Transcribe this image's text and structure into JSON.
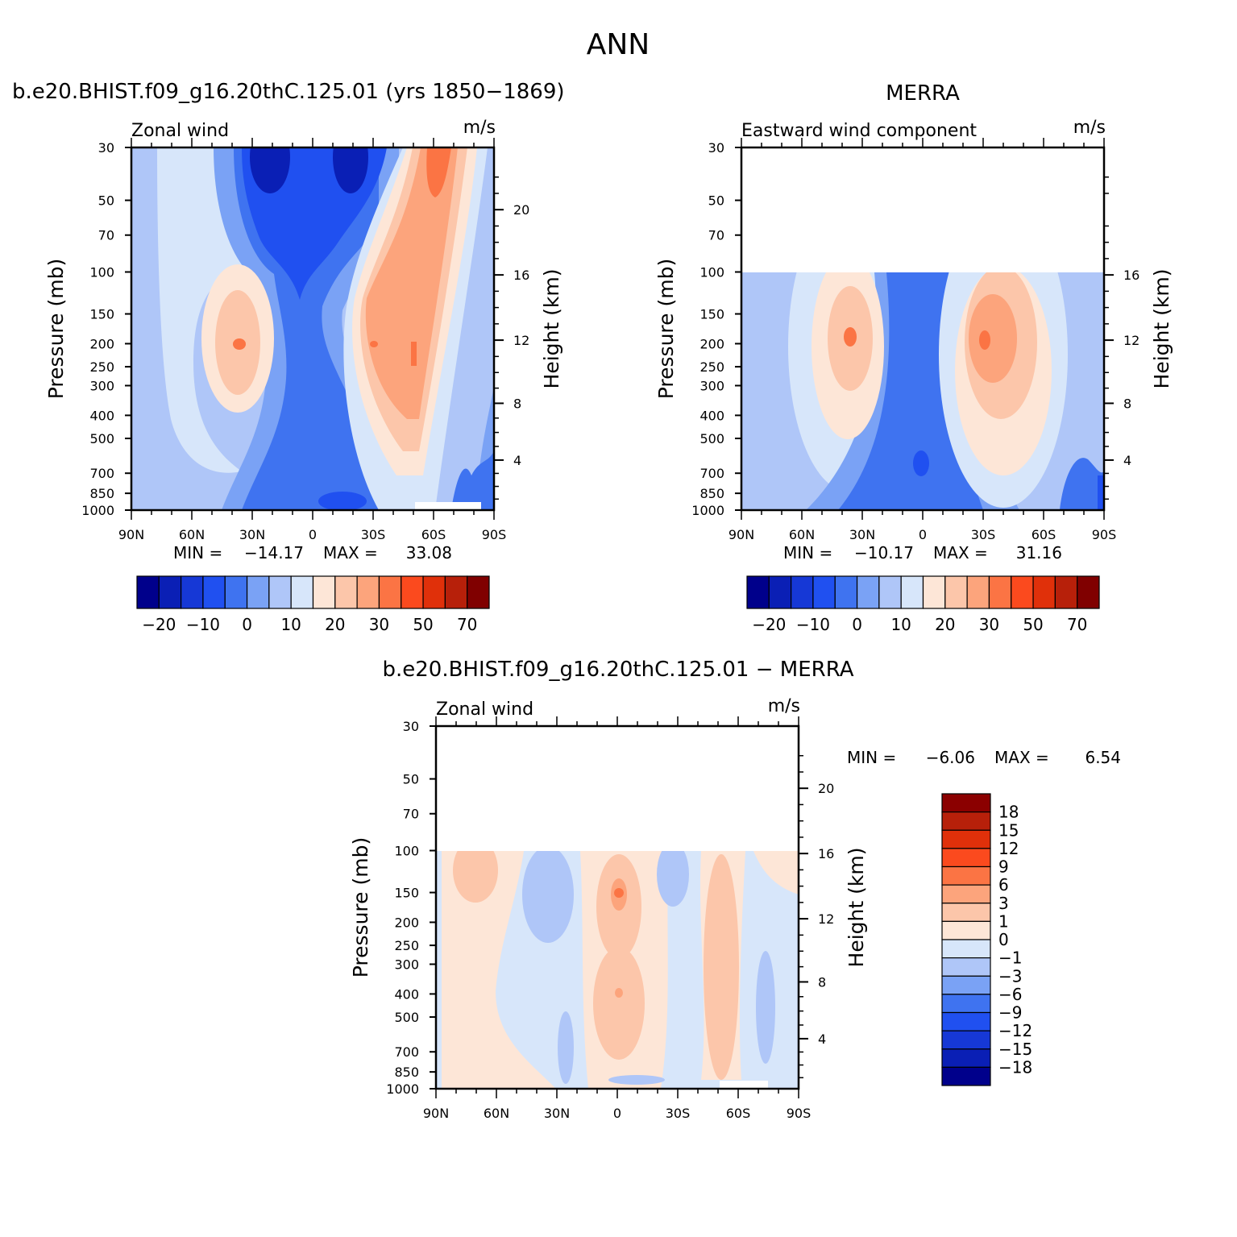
{
  "title": "ANN",
  "panels": [
    {
      "title": "b.e20.BHIST.f09_g16.20thC.125.01 (yrs 1850−1869)",
      "left_label": "Zonal wind",
      "units": "m/s",
      "y_title": "Pressure (mb)",
      "y2_title": "Height (km)",
      "pressure_ticks": [
        30,
        50,
        70,
        100,
        150,
        200,
        250,
        300,
        400,
        500,
        700,
        850,
        1000
      ],
      "height_ticks": [
        20,
        16,
        12,
        8,
        4
      ],
      "lat_ticks": [
        "90N",
        "60N",
        "30N",
        "0",
        "30S",
        "60S",
        "90S"
      ],
      "min_label": "MIN =",
      "min": "−14.17",
      "max_label": "MAX =",
      "max": "33.08",
      "colorbar": {
        "colors": [
          "#00008b",
          "#0a1fb5",
          "#1638d6",
          "#2050f0",
          "#3f73f0",
          "#7aa2f5",
          "#afc6f8",
          "#d7e6fa",
          "#fde6d7",
          "#fcc6aa",
          "#fca47c",
          "#fb7444",
          "#fb4a1e",
          "#e0300a",
          "#b7200a",
          "#800000"
        ],
        "labels": [
          "−20",
          "−10",
          "0",
          "10",
          "20",
          "30",
          "50",
          "70"
        ]
      }
    },
    {
      "title": "MERRA",
      "left_label": "Eastward wind component",
      "units": "m/s",
      "y_title": "Pressure (mb)",
      "y2_title": "Height (km)",
      "pressure_ticks": [
        30,
        50,
        70,
        100,
        150,
        200,
        250,
        300,
        400,
        500,
        700,
        850,
        1000
      ],
      "height_ticks": [
        16,
        12,
        8,
        4
      ],
      "lat_ticks": [
        "90N",
        "60N",
        "30N",
        "0",
        "30S",
        "60S",
        "90S"
      ],
      "min_label": "MIN =",
      "min": "−10.17",
      "max_label": "MAX =",
      "max": "31.16",
      "colorbar": {
        "colors": [
          "#00008b",
          "#0a1fb5",
          "#1638d6",
          "#2050f0",
          "#3f73f0",
          "#7aa2f5",
          "#afc6f8",
          "#d7e6fa",
          "#fde6d7",
          "#fcc6aa",
          "#fca47c",
          "#fb7444",
          "#fb4a1e",
          "#e0300a",
          "#b7200a",
          "#800000"
        ],
        "labels": [
          "−20",
          "−10",
          "0",
          "10",
          "20",
          "30",
          "50",
          "70"
        ]
      }
    },
    {
      "title": "b.e20.BHIST.f09_g16.20thC.125.01 − MERRA",
      "left_label": "Zonal wind",
      "units": "m/s",
      "y_title": "Pressure (mb)",
      "y2_title": "Height (km)",
      "pressure_ticks": [
        30,
        50,
        70,
        100,
        150,
        200,
        250,
        300,
        400,
        500,
        700,
        850,
        1000
      ],
      "height_ticks": [
        20,
        16,
        12,
        8,
        4
      ],
      "lat_ticks": [
        "90N",
        "60N",
        "30N",
        "0",
        "30S",
        "60S",
        "90S"
      ],
      "min_label": "MIN =",
      "min": "−6.06",
      "max_label": "MAX =",
      "max": "6.54",
      "colorbar": {
        "colors": [
          "#8b0000",
          "#b7200a",
          "#e0300a",
          "#fb4a1e",
          "#fb7444",
          "#fca47c",
          "#fcc6aa",
          "#fde6d7",
          "#d7e6fa",
          "#afc6f8",
          "#7aa2f5",
          "#3f73f0",
          "#2050f0",
          "#1638d6",
          "#0a1fb5",
          "#00008b"
        ],
        "labels": [
          "18",
          "15",
          "12",
          "9",
          "6",
          "3",
          "1",
          "0",
          "−1",
          "−3",
          "−6",
          "−9",
          "−12",
          "−15",
          "−18"
        ]
      }
    }
  ]
}
